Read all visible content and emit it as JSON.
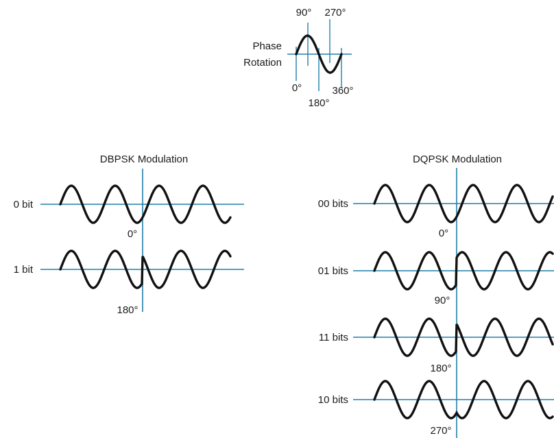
{
  "colors": {
    "axis": "#1f7fa8",
    "wave": "#111111",
    "text": "#1a1a1a"
  },
  "phase_rotation": {
    "title_line1": "Phase",
    "title_line2": "Rotation",
    "labels": {
      "deg90": "90°",
      "deg270": "270°",
      "deg0": "0°",
      "deg180": "180°",
      "deg360": "360°"
    }
  },
  "dbpsk": {
    "title": "DBPSK Modulation",
    "rows": [
      {
        "label": "0 bit",
        "phase_label": "0°"
      },
      {
        "label": "1 bit",
        "phase_label": "180°"
      }
    ]
  },
  "dqpsk": {
    "title": "DQPSK Modulation",
    "rows": [
      {
        "label": "00 bits",
        "phase_label": "0°"
      },
      {
        "label": "01 bits",
        "phase_label": "90°"
      },
      {
        "label": "11 bits",
        "phase_label": "180°"
      },
      {
        "label": "10 bits",
        "phase_label": "270°"
      }
    ]
  }
}
